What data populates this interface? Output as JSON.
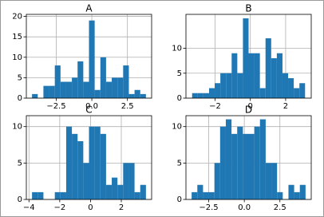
{
  "chart_data": [
    {
      "type": "histogram",
      "title": "A",
      "color": "#1f77b4",
      "grid": true,
      "bins": [
        -4.2,
        -3.8,
        -3.4,
        -3.0,
        -2.6,
        -2.2,
        -1.8,
        -1.4,
        -1.0,
        -0.6,
        -0.2,
        0.2,
        0.6,
        1.0,
        1.4,
        1.8,
        2.2,
        2.6,
        3.0,
        3.4,
        3.8
      ],
      "values": [
        1,
        0,
        3,
        3,
        8,
        4,
        4,
        5,
        9,
        4,
        19,
        2,
        10,
        4,
        5,
        5,
        8,
        1,
        2,
        1
      ],
      "xlim": [
        -4.6,
        4.2
      ],
      "ylim": [
        0,
        20.5
      ],
      "xticks": [
        {
          "value": -2.5,
          "label": "−2.5"
        },
        {
          "value": 0,
          "label": "0.0"
        },
        2.5
      ],
      "yticks": [
        0,
        5,
        10,
        15,
        20
      ]
    },
    {
      "type": "histogram",
      "title": "B",
      "color": "#1f77b4",
      "grid": true,
      "bins": [
        -3.3,
        -2.98,
        -2.66,
        -2.34,
        -2.02,
        -1.7,
        -1.38,
        -1.06,
        -0.74,
        -0.42,
        -0.1,
        0.22,
        0.54,
        0.86,
        1.18,
        1.5,
        1.82,
        2.14,
        2.46,
        2.78,
        3.1
      ],
      "values": [
        1,
        1,
        1,
        2,
        3,
        5,
        5,
        9,
        5,
        16,
        9,
        9,
        2,
        12,
        8,
        9,
        5,
        4,
        2,
        3
      ],
      "xlim": [
        -3.65,
        3.45
      ],
      "ylim": [
        0,
        16.8
      ],
      "xticks": [
        {
          "value": -2,
          "label": "−2"
        },
        0,
        2
      ],
      "yticks": [
        0,
        5,
        10
      ]
    },
    {
      "type": "histogram",
      "title": "C",
      "color": "#1f77b4",
      "grid": true,
      "bins": [
        -3.8,
        -3.43,
        -3.06,
        -2.69,
        -2.32,
        -1.95,
        -1.58,
        -1.21,
        -0.84,
        -0.47,
        -0.1,
        0.27,
        0.64,
        1.01,
        1.38,
        1.75,
        2.12,
        2.49,
        2.86,
        3.23,
        3.6
      ],
      "values": [
        1,
        1,
        0,
        0,
        1,
        1,
        10,
        9,
        8,
        5,
        10,
        10,
        9,
        2,
        3,
        2,
        5,
        5,
        1,
        2
      ],
      "xlim": [
        -4.17,
        3.97
      ],
      "ylim": [
        0,
        11.5
      ],
      "xticks": [
        {
          "value": -4,
          "label": "−4"
        },
        {
          "value": -2,
          "label": "−2"
        },
        0,
        2
      ],
      "yticks": [
        0,
        5,
        10
      ]
    },
    {
      "type": "histogram",
      "title": "D",
      "color": "#1f77b4",
      "grid": true,
      "bins": [
        -3.7,
        -3.3,
        -2.9,
        -2.5,
        -2.1,
        -1.7,
        -1.3,
        -0.9,
        -0.5,
        -0.1,
        0.3,
        0.7,
        1.1,
        1.5,
        1.9,
        2.3,
        2.7,
        3.1,
        3.5,
        3.9,
        4.3
      ],
      "values": [
        1,
        2,
        1,
        1,
        5,
        10,
        11,
        9,
        10,
        9,
        9,
        10,
        11,
        5,
        5,
        1,
        0,
        2,
        1,
        2
      ],
      "xlim": [
        -4.1,
        4.7
      ],
      "ylim": [
        0,
        11.5
      ],
      "xticks": [
        {
          "value": -2.5,
          "label": "−2.5"
        },
        {
          "value": 0,
          "label": "0.0"
        },
        2.5
      ],
      "yticks": [
        0,
        5,
        10
      ]
    }
  ]
}
